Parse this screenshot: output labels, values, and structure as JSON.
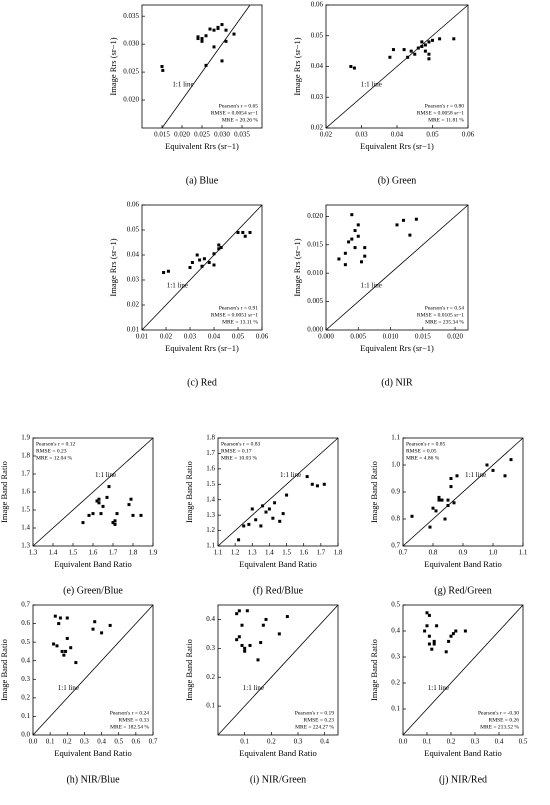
{
  "chart_data": [
    {
      "type": "scatter",
      "caption": "(a) Blue",
      "xlabel": "Equivalent Rrs (sr−1)",
      "ylabel": "Image Rrs (sr−1)",
      "color": "#000000",
      "x": [
        0.015,
        0.0152,
        0.024,
        0.024,
        0.025,
        0.025,
        0.026,
        0.026,
        0.027,
        0.028,
        0.028,
        0.029,
        0.029,
        0.03,
        0.03,
        0.031,
        0.031,
        0.033
      ],
      "y": [
        0.026,
        0.0253,
        0.0313,
        0.031,
        0.0305,
        0.031,
        0.0262,
        0.0315,
        0.0327,
        0.0325,
        0.0295,
        0.0328,
        0.033,
        0.0335,
        0.027,
        0.0325,
        0.0305,
        0.0318
      ],
      "xlim": [
        0.01,
        0.04
      ],
      "ylim": [
        0.015,
        0.037
      ],
      "xticks": [
        0.015,
        {
          "value": 0.02,
          "label": "0.020"
        },
        0.025,
        {
          "value": 0.03,
          "label": "0.030"
        },
        0.035
      ],
      "yticks": [
        {
          "value": 0.02,
          "label": "0.020"
        },
        0.025,
        {
          "value": 0.03,
          "label": "0.030"
        },
        0.035
      ],
      "line_label": "1:1 line",
      "stats": [
        "Pearson's r = 0.65",
        "RMSE = 0.0054 sr−1",
        "MRE = 20.26 %"
      ],
      "stats_corner": "bottom-right"
    },
    {
      "type": "scatter",
      "caption": "(b) Green",
      "xlabel": "Equivalent Rrs (sr−1)",
      "ylabel": "Image Rrs (sr−1)",
      "color": "#000000",
      "x": [
        0.027,
        0.028,
        0.038,
        0.039,
        0.042,
        0.043,
        0.044,
        0.045,
        0.046,
        0.047,
        0.047,
        0.048,
        0.048,
        0.049,
        0.049,
        0.05,
        0.049,
        0.052,
        0.056
      ],
      "y": [
        0.04,
        0.0395,
        0.043,
        0.0455,
        0.0455,
        0.043,
        0.045,
        0.044,
        0.046,
        0.048,
        0.0465,
        0.047,
        0.045,
        0.044,
        0.048,
        0.0485,
        0.0425,
        0.049,
        0.049
      ],
      "xlim": [
        0.02,
        0.06
      ],
      "ylim": [
        0.02,
        0.06
      ],
      "xticks": [
        0.02,
        0.03,
        0.04,
        0.05,
        0.06
      ],
      "yticks": [
        0.02,
        0.03,
        0.04,
        0.05,
        0.06
      ],
      "line_label": "1:1 line",
      "stats": [
        "Pearson's r = 0.80",
        "RMSE = 0.0058 sr−1",
        "MRE = 11.81 %"
      ],
      "stats_corner": "bottom-right"
    },
    {
      "type": "scatter",
      "caption": "(c) Red",
      "xlabel": "Equivalent Rrs (sr−1)",
      "ylabel": "Image Rrs (sr−1)",
      "color": "#000000",
      "x": [
        0.019,
        0.021,
        0.03,
        0.031,
        0.033,
        0.034,
        0.035,
        0.036,
        0.038,
        0.04,
        0.04,
        0.042,
        0.042,
        0.043,
        0.05,
        0.052,
        0.053,
        0.055
      ],
      "y": [
        0.033,
        0.0335,
        0.035,
        0.037,
        0.04,
        0.038,
        0.0355,
        0.0385,
        0.037,
        0.0405,
        0.036,
        0.044,
        0.0425,
        0.043,
        0.049,
        0.049,
        0.0475,
        0.049
      ],
      "xlim": [
        0.01,
        0.06
      ],
      "ylim": [
        0.01,
        0.06
      ],
      "xticks": [
        0.01,
        0.02,
        0.03,
        0.04,
        0.05,
        0.06
      ],
      "yticks": [
        0.01,
        0.02,
        0.03,
        0.04,
        0.05,
        0.06
      ],
      "line_label": "1:1 line",
      "stats": [
        "Pearson's r = 0.91",
        "RMSE = 0.0051 sr−1",
        "MRE = 13.11 %"
      ],
      "stats_corner": "bottom-right"
    },
    {
      "type": "scatter",
      "caption": "(d) NIR",
      "xlabel": "Equivalent Rrs (sr−1)",
      "ylabel": "Image Rrs (sr−1)",
      "color": "#000000",
      "x": [
        0.002,
        0.003,
        0.003,
        0.0035,
        0.004,
        0.004,
        0.0045,
        0.005,
        0.005,
        0.0055,
        0.006,
        0.0045,
        0.006,
        0.011,
        0.012,
        0.013,
        0.014
      ],
      "y": [
        0.0125,
        0.0115,
        0.0135,
        0.0155,
        0.016,
        0.0203,
        0.0175,
        0.0165,
        0.0185,
        0.012,
        0.0145,
        0.0145,
        0.013,
        0.0185,
        0.0193,
        0.0167,
        0.0195
      ],
      "xlim": [
        0,
        0.022
      ],
      "ylim": [
        0,
        0.022
      ],
      "xticks": [
        {
          "value": 0,
          "label": "0.000"
        },
        0.005,
        {
          "value": 0.01,
          "label": "0.010"
        },
        0.015,
        {
          "value": 0.02,
          "label": "0.020"
        }
      ],
      "yticks": [
        {
          "value": 0,
          "label": "0.000"
        },
        0.005,
        {
          "value": 0.01,
          "label": "0.010"
        },
        0.015,
        {
          "value": 0.02,
          "label": "0.020"
        }
      ],
      "line_label": "1:1 line",
      "stats": [
        "Pearson's r = 0.54",
        "RMSE = 0.0105 sr−1",
        "MRE = 235.34 %"
      ],
      "stats_corner": "bottom-right"
    },
    {
      "type": "scatter",
      "caption": "(e) Green/Blue",
      "xlabel": "Equivalent Band Ratio",
      "ylabel": "Image Band Ratio",
      "color": "#000000",
      "x": [
        1.55,
        1.58,
        1.6,
        1.62,
        1.63,
        1.63,
        1.64,
        1.65,
        1.67,
        1.68,
        1.7,
        1.71,
        1.71,
        1.72,
        1.78,
        1.79,
        1.8,
        1.84
      ],
      "y": [
        1.43,
        1.47,
        1.48,
        1.55,
        1.56,
        1.54,
        1.48,
        1.52,
        1.57,
        1.63,
        1.43,
        1.42,
        1.44,
        1.48,
        1.53,
        1.56,
        1.47,
        1.47
      ],
      "xlim": [
        1.3,
        1.9
      ],
      "ylim": [
        1.3,
        1.9
      ],
      "xticks": [
        1.3,
        1.4,
        1.5,
        1.6,
        1.7,
        1.8,
        1.9
      ],
      "yticks": [
        1.3,
        1.4,
        1.5,
        1.6,
        1.7,
        1.8,
        1.9
      ],
      "line_label": "1:1 line",
      "stats": [
        "Pearson's r = 0.12",
        "RMSE = 0.23",
        "MRE = 12.04 %"
      ],
      "stats_corner": "top-left"
    },
    {
      "type": "scatter",
      "caption": "(f) Red/Blue",
      "xlabel": "Equivalent Band Ratio",
      "ylabel": "Image Band Ratio",
      "color": "#000000",
      "x": [
        1.22,
        1.25,
        1.28,
        1.3,
        1.32,
        1.35,
        1.36,
        1.38,
        1.4,
        1.42,
        1.43,
        1.46,
        1.48,
        1.5,
        1.62,
        1.65,
        1.68,
        1.72
      ],
      "y": [
        1.14,
        1.23,
        1.24,
        1.34,
        1.27,
        1.23,
        1.36,
        1.32,
        1.34,
        1.28,
        1.38,
        1.26,
        1.31,
        1.43,
        1.55,
        1.5,
        1.49,
        1.5
      ],
      "xlim": [
        1.1,
        1.8
      ],
      "ylim": [
        1.1,
        1.8
      ],
      "xticks": [
        1.1,
        1.2,
        1.3,
        1.4,
        1.5,
        1.6,
        1.7,
        1.8
      ],
      "yticks": [
        1.1,
        1.2,
        1.3,
        1.4,
        1.5,
        1.6,
        1.7,
        1.8
      ],
      "line_label": "1:1 line",
      "stats": [
        "Pearson's r = 0.83",
        "RMSE = 0.17",
        "MRE = 10.03 %"
      ],
      "stats_corner": "top-left"
    },
    {
      "type": "scatter",
      "caption": "(g) Red/Green",
      "xlabel": "Equivalent Band Ratio",
      "ylabel": "Image Band Ratio",
      "color": "#000000",
      "x": [
        0.73,
        0.79,
        0.8,
        0.81,
        0.82,
        0.82,
        0.83,
        0.84,
        0.85,
        0.85,
        0.86,
        0.86,
        0.87,
        0.88,
        0.98,
        1.0,
        1.04,
        1.06
      ],
      "y": [
        0.81,
        0.77,
        0.84,
        0.83,
        0.88,
        0.87,
        0.87,
        0.8,
        0.87,
        0.85,
        0.92,
        0.95,
        0.86,
        0.96,
        1.0,
        0.98,
        0.96,
        1.02
      ],
      "xlim": [
        0.7,
        1.1
      ],
      "ylim": [
        0.7,
        1.1
      ],
      "xticks": [
        0.7,
        0.8,
        0.9,
        {
          "value": 1,
          "label": "1.0"
        },
        1.1
      ],
      "yticks": [
        0.7,
        0.8,
        0.9,
        {
          "value": 1,
          "label": "1.0"
        },
        1.1
      ],
      "line_label": "1:1 line",
      "stats": [
        "Pearson's r = 0.85",
        "RMSE = 0.05",
        "MRE = 4.86 %"
      ],
      "stats_corner": "top-left"
    },
    {
      "type": "scatter",
      "caption": "(h) NIR/Blue",
      "xlabel": "Equivalent Band Ratio",
      "ylabel": "Image Band Ratio",
      "color": "#000000",
      "x": [
        0.12,
        0.13,
        0.14,
        0.15,
        0.16,
        0.17,
        0.18,
        0.19,
        0.2,
        0.2,
        0.22,
        0.25,
        0.35,
        0.36,
        0.4,
        0.45
      ],
      "y": [
        0.49,
        0.64,
        0.48,
        0.6,
        0.63,
        0.45,
        0.43,
        0.45,
        0.52,
        0.63,
        0.47,
        0.39,
        0.57,
        0.61,
        0.55,
        0.59
      ],
      "xlim": [
        0,
        0.7
      ],
      "ylim": [
        0,
        0.7
      ],
      "xticks": [
        {
          "value": 0,
          "label": "0.0"
        },
        0.1,
        0.2,
        0.3,
        0.4,
        0.5,
        0.6,
        0.7
      ],
      "yticks": [
        {
          "value": 0,
          "label": "0.0"
        },
        0.1,
        0.2,
        0.3,
        0.4,
        0.5,
        0.6,
        0.7
      ],
      "line_label": "1:1 line",
      "stats": [
        "Pearson's r = 0.24",
        "RMSE = 0.33",
        "MRE = 182.54 %"
      ],
      "stats_corner": "bottom-right"
    },
    {
      "type": "scatter",
      "caption": "(i) NIR/Green",
      "xlabel": "Equivalent Band Ratio",
      "ylabel": "Image Band Ratio",
      "color": "#000000",
      "x": [
        0.07,
        0.07,
        0.08,
        0.08,
        0.09,
        0.09,
        0.1,
        0.1,
        0.11,
        0.12,
        0.15,
        0.16,
        0.17,
        0.18,
        0.23,
        0.26
      ],
      "y": [
        0.33,
        0.42,
        0.34,
        0.43,
        0.38,
        0.31,
        0.3,
        0.29,
        0.43,
        0.31,
        0.26,
        0.32,
        0.38,
        0.4,
        0.35,
        0.41
      ],
      "xlim": [
        0,
        0.45
      ],
      "ylim": [
        0,
        0.45
      ],
      "xticks": [
        0.1,
        0.2,
        0.3,
        0.4
      ],
      "yticks": [
        0.1,
        0.2,
        0.3,
        0.4
      ],
      "line_label": "1:1 line",
      "stats": [
        "Pearson's r = 0.19",
        "RMSE = 0.23",
        "MRE = 224.27 %"
      ],
      "stats_corner": "bottom-right"
    },
    {
      "type": "scatter",
      "caption": "(j) NIR/Red",
      "xlabel": "Equivalent Band Ratio",
      "ylabel": "Image Band Ratio",
      "color": "#000000",
      "x": [
        0.09,
        0.1,
        0.1,
        0.11,
        0.11,
        0.11,
        0.12,
        0.13,
        0.13,
        0.14,
        0.18,
        0.19,
        0.2,
        0.21,
        0.22,
        0.26
      ],
      "y": [
        0.4,
        0.47,
        0.42,
        0.46,
        0.38,
        0.35,
        0.33,
        0.36,
        0.35,
        0.42,
        0.32,
        0.36,
        0.38,
        0.39,
        0.4,
        0.4
      ],
      "xlim": [
        0,
        0.5
      ],
      "ylim": [
        0,
        0.5
      ],
      "xticks": [
        {
          "value": 0,
          "label": "0.0"
        },
        0.1,
        0.2,
        0.3,
        0.4,
        0.5
      ],
      "yticks": [
        0.1,
        0.2,
        0.3,
        0.4,
        0.5
      ],
      "line_label": "1:1 line",
      "stats": [
        "Pearson's r = -0.30",
        "RMSE = 0.26",
        "MRE = 213.52 %"
      ],
      "stats_corner": "bottom-right"
    }
  ]
}
